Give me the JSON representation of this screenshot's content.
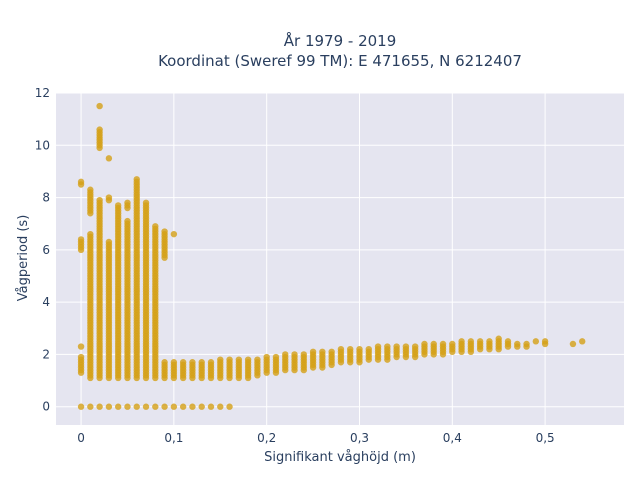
{
  "chart_data": {
    "type": "scatter",
    "title_line1": "År 1979 - 2019",
    "title_line2": "Koordinat (Sweref 99 TM): E 471655, N 6212407",
    "xlabel": "Signifikant våghöjd (m)",
    "ylabel": "Vågperiod (s)",
    "xlim": [
      -0.027,
      0.585
    ],
    "ylim": [
      -0.7,
      12
    ],
    "x_ticks": [
      0,
      0.1,
      0.2,
      0.3,
      0.4,
      0.5
    ],
    "x_tick_labels": [
      "0",
      "0,1",
      "0,2",
      "0,3",
      "0,4",
      "0,5"
    ],
    "y_ticks": [
      0,
      2,
      4,
      6,
      8,
      10,
      12
    ],
    "y_tick_labels": [
      "0",
      "2",
      "4",
      "6",
      "8",
      "10",
      "12"
    ],
    "grid": true,
    "background_color": "#e5e5f0",
    "marker_color": "#d4a017",
    "columns": [
      {
        "x": 0.0,
        "ranges": [
          [
            1.3,
            1.9
          ],
          [
            2.3,
            2.3
          ],
          [
            6.0,
            6.4
          ],
          [
            8.5,
            8.6
          ]
        ],
        "zero": true
      },
      {
        "x": 0.01,
        "ranges": [
          [
            1.1,
            6.6
          ],
          [
            7.4,
            8.3
          ]
        ],
        "zero": true
      },
      {
        "x": 0.02,
        "ranges": [
          [
            1.1,
            7.9
          ],
          [
            9.9,
            10.6
          ],
          [
            11.5,
            11.5
          ]
        ],
        "zero": true
      },
      {
        "x": 0.03,
        "ranges": [
          [
            1.1,
            6.3
          ],
          [
            7.9,
            8.0
          ],
          [
            9.5,
            9.5
          ]
        ],
        "zero": true
      },
      {
        "x": 0.04,
        "ranges": [
          [
            1.1,
            7.7
          ]
        ],
        "zero": true
      },
      {
        "x": 0.05,
        "ranges": [
          [
            1.1,
            7.1
          ],
          [
            7.6,
            7.8
          ]
        ],
        "zero": true
      },
      {
        "x": 0.06,
        "ranges": [
          [
            1.1,
            8.7
          ]
        ],
        "zero": true
      },
      {
        "x": 0.07,
        "ranges": [
          [
            1.1,
            7.8
          ]
        ],
        "zero": true
      },
      {
        "x": 0.08,
        "ranges": [
          [
            1.1,
            6.9
          ]
        ],
        "zero": true
      },
      {
        "x": 0.09,
        "ranges": [
          [
            1.1,
            1.7
          ],
          [
            5.7,
            6.7
          ]
        ],
        "zero": true
      },
      {
        "x": 0.1,
        "ranges": [
          [
            1.1,
            1.7
          ],
          [
            6.6,
            6.6
          ]
        ],
        "zero": true
      },
      {
        "x": 0.11,
        "ranges": [
          [
            1.1,
            1.7
          ]
        ],
        "zero": true
      },
      {
        "x": 0.12,
        "ranges": [
          [
            1.1,
            1.7
          ]
        ],
        "zero": true
      },
      {
        "x": 0.13,
        "ranges": [
          [
            1.1,
            1.7
          ]
        ],
        "zero": true
      },
      {
        "x": 0.14,
        "ranges": [
          [
            1.1,
            1.7
          ]
        ],
        "zero": true
      },
      {
        "x": 0.15,
        "ranges": [
          [
            1.1,
            1.8
          ]
        ],
        "zero": true
      },
      {
        "x": 0.16,
        "ranges": [
          [
            1.1,
            1.8
          ]
        ],
        "zero": true
      },
      {
        "x": 0.17,
        "ranges": [
          [
            1.1,
            1.8
          ]
        ],
        "zero": false
      },
      {
        "x": 0.18,
        "ranges": [
          [
            1.1,
            1.8
          ]
        ],
        "zero": false
      },
      {
        "x": 0.19,
        "ranges": [
          [
            1.2,
            1.8
          ]
        ],
        "zero": false
      },
      {
        "x": 0.2,
        "ranges": [
          [
            1.3,
            1.9
          ]
        ],
        "zero": false
      },
      {
        "x": 0.21,
        "ranges": [
          [
            1.3,
            1.9
          ]
        ],
        "zero": false
      },
      {
        "x": 0.22,
        "ranges": [
          [
            1.4,
            2.0
          ]
        ],
        "zero": false
      },
      {
        "x": 0.23,
        "ranges": [
          [
            1.4,
            2.0
          ]
        ],
        "zero": false
      },
      {
        "x": 0.24,
        "ranges": [
          [
            1.4,
            2.0
          ]
        ],
        "zero": false
      },
      {
        "x": 0.25,
        "ranges": [
          [
            1.5,
            2.1
          ]
        ],
        "zero": false
      },
      {
        "x": 0.26,
        "ranges": [
          [
            1.5,
            2.1
          ]
        ],
        "zero": false
      },
      {
        "x": 0.27,
        "ranges": [
          [
            1.6,
            2.1
          ]
        ],
        "zero": false
      },
      {
        "x": 0.28,
        "ranges": [
          [
            1.7,
            2.2
          ]
        ],
        "zero": false
      },
      {
        "x": 0.29,
        "ranges": [
          [
            1.7,
            2.2
          ]
        ],
        "zero": false
      },
      {
        "x": 0.3,
        "ranges": [
          [
            1.7,
            2.2
          ]
        ],
        "zero": false
      },
      {
        "x": 0.31,
        "ranges": [
          [
            1.8,
            2.2
          ]
        ],
        "zero": false
      },
      {
        "x": 0.32,
        "ranges": [
          [
            1.8,
            2.3
          ]
        ],
        "zero": false
      },
      {
        "x": 0.33,
        "ranges": [
          [
            1.8,
            2.3
          ]
        ],
        "zero": false
      },
      {
        "x": 0.34,
        "ranges": [
          [
            1.9,
            2.3
          ]
        ],
        "zero": false
      },
      {
        "x": 0.35,
        "ranges": [
          [
            1.9,
            2.3
          ]
        ],
        "zero": false
      },
      {
        "x": 0.36,
        "ranges": [
          [
            1.9,
            2.3
          ]
        ],
        "zero": false
      },
      {
        "x": 0.37,
        "ranges": [
          [
            2.0,
            2.4
          ]
        ],
        "zero": false
      },
      {
        "x": 0.38,
        "ranges": [
          [
            2.0,
            2.4
          ]
        ],
        "zero": false
      },
      {
        "x": 0.39,
        "ranges": [
          [
            2.0,
            2.4
          ]
        ],
        "zero": false
      },
      {
        "x": 0.4,
        "ranges": [
          [
            2.1,
            2.4
          ]
        ],
        "zero": false
      },
      {
        "x": 0.41,
        "ranges": [
          [
            2.1,
            2.5
          ]
        ],
        "zero": false
      },
      {
        "x": 0.42,
        "ranges": [
          [
            2.1,
            2.5
          ]
        ],
        "zero": false
      },
      {
        "x": 0.43,
        "ranges": [
          [
            2.2,
            2.5
          ]
        ],
        "zero": false
      },
      {
        "x": 0.44,
        "ranges": [
          [
            2.2,
            2.5
          ]
        ],
        "zero": false
      },
      {
        "x": 0.45,
        "ranges": [
          [
            2.2,
            2.6
          ]
        ],
        "zero": false
      },
      {
        "x": 0.46,
        "ranges": [
          [
            2.3,
            2.5
          ]
        ],
        "zero": false
      },
      {
        "x": 0.47,
        "ranges": [
          [
            2.3,
            2.4
          ]
        ],
        "zero": false
      },
      {
        "x": 0.48,
        "ranges": [
          [
            2.3,
            2.4
          ]
        ],
        "zero": false
      },
      {
        "x": 0.49,
        "ranges": [
          [
            2.5,
            2.5
          ]
        ],
        "zero": false
      },
      {
        "x": 0.5,
        "ranges": [
          [
            2.4,
            2.5
          ]
        ],
        "zero": false
      },
      {
        "x": 0.53,
        "ranges": [
          [
            2.4,
            2.4
          ]
        ],
        "zero": false
      },
      {
        "x": 0.54,
        "ranges": [
          [
            2.5,
            2.5
          ]
        ],
        "zero": false
      }
    ]
  }
}
